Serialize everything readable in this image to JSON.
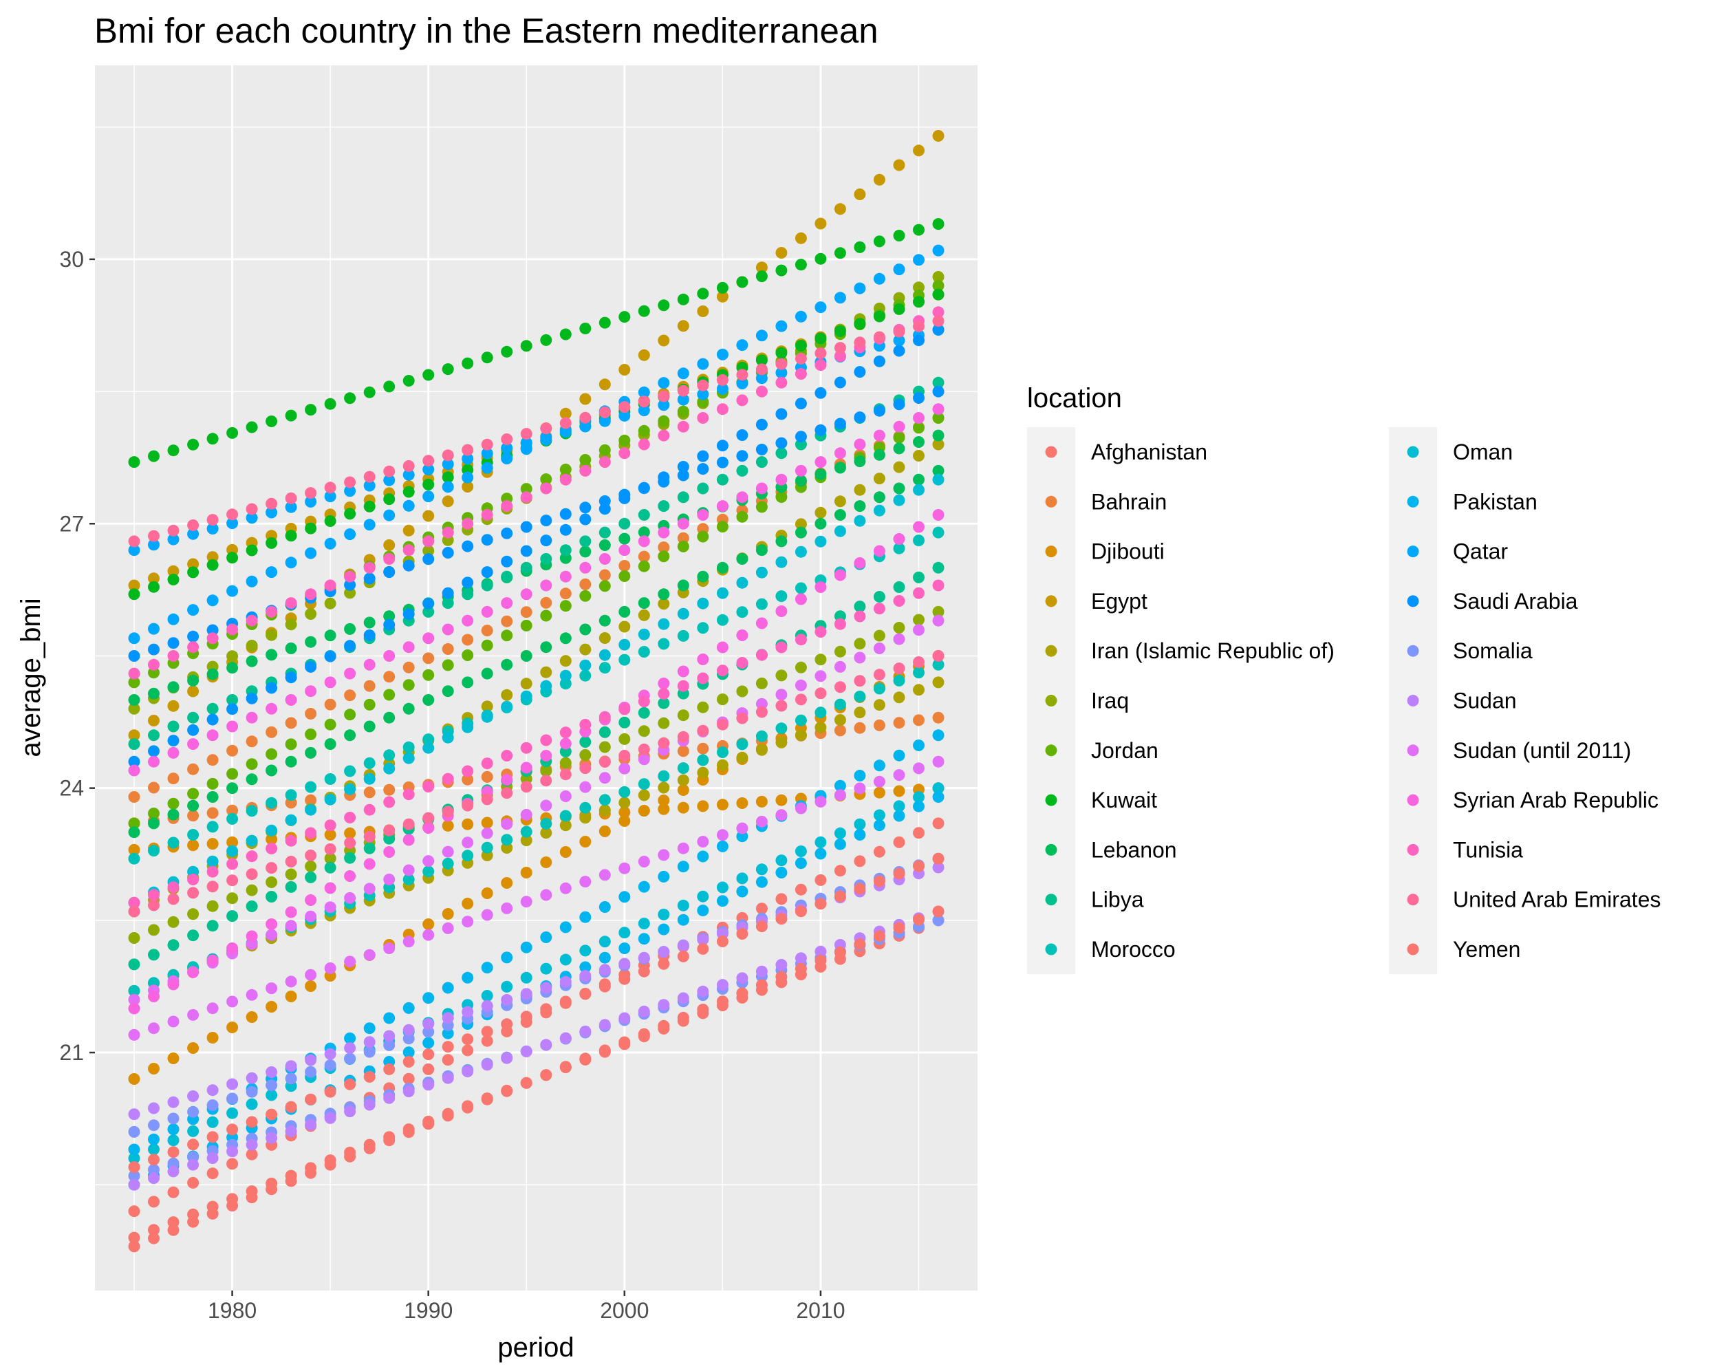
{
  "chart_data": {
    "type": "scatter",
    "title": "Bmi for each country in the Eastern mediterranean",
    "xlabel": "period",
    "ylabel": "average_bmi",
    "xlim": [
      1973,
      2018
    ],
    "ylim": [
      18.3,
      32.2
    ],
    "x_ticks": [
      1980,
      1990,
      2000,
      2010
    ],
    "y_ticks": [
      21,
      24,
      27,
      30
    ],
    "grid": true,
    "legend": {
      "title": "location",
      "position": "right",
      "columns": 2
    },
    "x": [
      1975,
      1976,
      1977,
      1978,
      1979,
      1980,
      1981,
      1982,
      1983,
      1984,
      1985,
      1986,
      1987,
      1988,
      1989,
      1990,
      1991,
      1992,
      1993,
      1994,
      1995,
      1996,
      1997,
      1998,
      1999,
      2000,
      2001,
      2002,
      2003,
      2004,
      2005,
      2006,
      2007,
      2008,
      2009,
      2010,
      2011,
      2012,
      2013,
      2014,
      2015,
      2016
    ],
    "series": [
      {
        "name": "Afghanistan",
        "color": "#F8766D",
        "points": [
          {
            "start": 18.9,
            "end": 22.5
          },
          {
            "start": 19.2,
            "end": 23.6
          }
        ]
      },
      {
        "name": "Bahrain",
        "color": "#EC8239",
        "points": [
          {
            "start": 23.9,
            "end": 28.2
          },
          {
            "start": 23.6,
            "end": 24.8
          }
        ]
      },
      {
        "name": "Djibouti",
        "color": "#DB8E00",
        "points": [
          {
            "start": 20.7,
            "end": 25.5
          },
          {
            "start": 23.3,
            "end": 24.0
          }
        ]
      },
      {
        "name": "Egypt",
        "color": "#C79800",
        "points": [
          {
            "start": 24.6,
            "end": 31.4
          },
          {
            "start": 26.3,
            "end": 29.6
          }
        ]
      },
      {
        "name": "Iran (Islamic Republic of)",
        "color": "#AEA200",
        "points": [
          {
            "start": 22.6,
            "end": 27.9
          },
          {
            "start": 21.7,
            "end": 25.2
          }
        ]
      },
      {
        "name": "Iraq",
        "color": "#8FAA00",
        "points": [
          {
            "start": 24.9,
            "end": 29.8
          },
          {
            "start": 22.3,
            "end": 26.0
          }
        ]
      },
      {
        "name": "Jordan",
        "color": "#64B200",
        "points": [
          {
            "start": 25.2,
            "end": 29.7
          },
          {
            "start": 23.6,
            "end": 28.2
          }
        ]
      },
      {
        "name": "Kuwait",
        "color": "#00B81B",
        "points": [
          {
            "start": 27.7,
            "end": 30.4
          },
          {
            "start": 26.2,
            "end": 29.6
          }
        ]
      },
      {
        "name": "Lebanon",
        "color": "#00BD5C",
        "points": [
          {
            "start": 25.0,
            "end": 28.0
          },
          {
            "start": 23.5,
            "end": 27.6
          }
        ]
      },
      {
        "name": "Libya",
        "color": "#00C08E",
        "points": [
          {
            "start": 24.5,
            "end": 28.6
          },
          {
            "start": 22.0,
            "end": 26.5
          }
        ]
      },
      {
        "name": "Morocco",
        "color": "#00C1B7",
        "points": [
          {
            "start": 23.2,
            "end": 26.9
          },
          {
            "start": 21.7,
            "end": 25.4
          }
        ]
      },
      {
        "name": "Oman",
        "color": "#00BDD4",
        "points": [
          {
            "start": 22.7,
            "end": 27.5
          },
          {
            "start": 19.8,
            "end": 24.0
          }
        ]
      },
      {
        "name": "Pakistan",
        "color": "#00B5EE",
        "points": [
          {
            "start": 19.5,
            "end": 23.9
          },
          {
            "start": 19.9,
            "end": 24.6
          }
        ]
      },
      {
        "name": "Qatar",
        "color": "#00A7FF",
        "points": [
          {
            "start": 25.7,
            "end": 30.1
          },
          {
            "start": 26.7,
            "end": 29.2
          }
        ]
      },
      {
        "name": "Saudi Arabia",
        "color": "#0094FF",
        "points": [
          {
            "start": 24.3,
            "end": 29.2
          },
          {
            "start": 25.5,
            "end": 28.5
          }
        ]
      },
      {
        "name": "Somalia",
        "color": "#7F96FF",
        "points": [
          {
            "start": 20.1,
            "end": 23.2
          },
          {
            "start": 19.6,
            "end": 22.5
          }
        ]
      },
      {
        "name": "Sudan",
        "color": "#BC81FF",
        "points": [
          {
            "start": 20.3,
            "end": 23.1
          },
          {
            "start": 19.5,
            "end": 22.6
          }
        ]
      },
      {
        "name": "Sudan (until 2011)",
        "color": "#E26EF7",
        "points": [
          {
            "start": 21.2,
            "end": 24.3
          },
          {
            "start": 21.6,
            "end": 25.9
          }
        ]
      },
      {
        "name": "Syrian Arab Republic",
        "color": "#F863DF",
        "points": [
          {
            "start": 24.2,
            "end": 28.3
          },
          {
            "start": 21.5,
            "end": 27.1
          }
        ]
      },
      {
        "name": "Tunisia",
        "color": "#FF62BF",
        "points": [
          {
            "start": 25.3,
            "end": 29.4
          },
          {
            "start": 22.7,
            "end": 26.3
          }
        ]
      },
      {
        "name": "United Arab Emirates",
        "color": "#FF6A98",
        "points": [
          {
            "start": 26.8,
            "end": 29.3
          },
          {
            "start": 22.6,
            "end": 25.5
          }
        ]
      },
      {
        "name": "Yemen",
        "color": "#F8766D",
        "points": [
          {
            "start": 19.7,
            "end": 23.2
          },
          {
            "start": 18.8,
            "end": 22.6
          }
        ]
      }
    ]
  }
}
